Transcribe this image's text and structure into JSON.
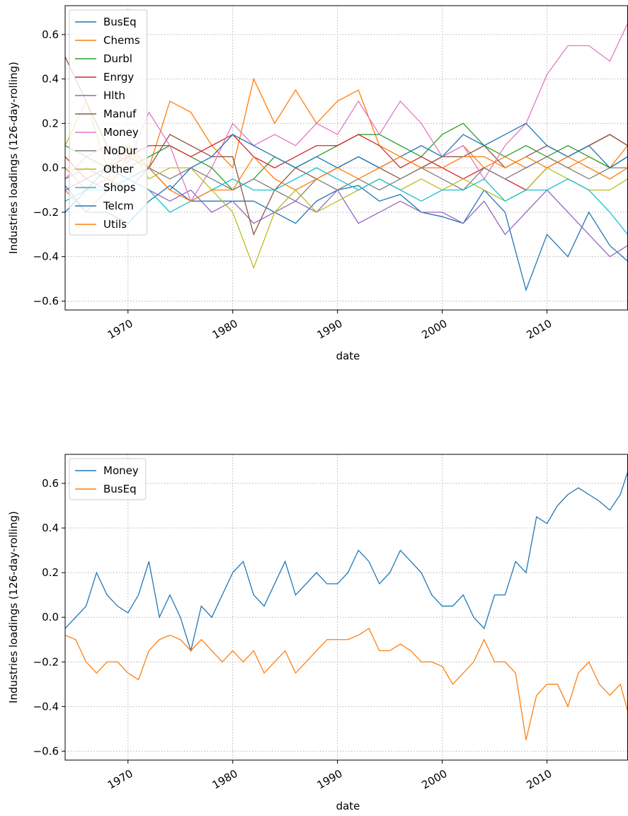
{
  "chart_data": [
    {
      "type": "line",
      "xlabel": "date",
      "ylabel": "Industries loadings (126-day-rolling)",
      "x": [
        1964,
        1966,
        1968,
        1970,
        1972,
        1974,
        1976,
        1978,
        1980,
        1982,
        1984,
        1986,
        1988,
        1990,
        1992,
        1994,
        1996,
        1998,
        2000,
        2002,
        2004,
        2006,
        2008,
        2010,
        2012,
        2014,
        2016,
        2017.7
      ],
      "xlim": [
        1964,
        2017.7
      ],
      "xticks": [
        1970,
        1980,
        1990,
        2000,
        2010
      ],
      "ylim": [
        -0.64,
        0.73
      ],
      "yticks": [
        {
          "value": -0.6,
          "label": "−0.6"
        },
        {
          "value": -0.4,
          "label": "−0.4"
        },
        {
          "value": -0.2,
          "label": "−0.2"
        },
        {
          "value": 0,
          "label": "0.0"
        },
        0.2,
        0.4,
        0.6
      ],
      "grid": true,
      "legend": "upper left",
      "series": [
        {
          "name": "BusEq",
          "color": "#1f77b4",
          "values": [
            -0.08,
            -0.2,
            -0.2,
            -0.25,
            -0.15,
            -0.08,
            -0.15,
            -0.15,
            -0.15,
            -0.15,
            -0.2,
            -0.25,
            -0.15,
            -0.1,
            -0.08,
            -0.15,
            -0.12,
            -0.2,
            -0.22,
            -0.25,
            -0.1,
            -0.2,
            -0.55,
            -0.3,
            -0.4,
            -0.2,
            -0.35,
            -0.42
          ]
        },
        {
          "name": "Chems",
          "color": "#ff7f0e",
          "values": [
            0.0,
            -0.1,
            -0.05,
            0.1,
            0.0,
            0.3,
            0.25,
            0.1,
            0.0,
            0.4,
            0.2,
            0.35,
            0.2,
            0.3,
            0.35,
            0.1,
            0.05,
            0.0,
            0.05,
            0.1,
            0.0,
            0.05,
            0.0,
            0.05,
            0.0,
            0.05,
            0.0,
            0.1
          ]
        },
        {
          "name": "Durbl",
          "color": "#2ca02c",
          "values": [
            0.1,
            0.05,
            0.0,
            0.0,
            0.05,
            0.1,
            0.05,
            0.0,
            -0.1,
            -0.05,
            0.05,
            0.0,
            0.05,
            0.1,
            0.15,
            0.15,
            0.1,
            0.05,
            0.15,
            0.2,
            0.1,
            0.05,
            0.1,
            0.05,
            0.1,
            0.05,
            0.0,
            0.05
          ]
        },
        {
          "name": "Enrgy",
          "color": "#d62728",
          "values": [
            0.05,
            -0.05,
            0.0,
            0.05,
            0.1,
            0.1,
            0.05,
            0.1,
            0.15,
            0.05,
            0.0,
            0.05,
            0.1,
            0.1,
            0.15,
            0.1,
            0.0,
            0.05,
            0.0,
            -0.05,
            0.0,
            -0.05,
            -0.1,
            0.0,
            0.05,
            0.1,
            0.15,
            0.1
          ]
        },
        {
          "name": "Hlth",
          "color": "#9467bd",
          "values": [
            -0.1,
            -0.05,
            -0.1,
            -0.05,
            -0.1,
            -0.15,
            -0.1,
            -0.2,
            -0.15,
            -0.25,
            -0.2,
            -0.15,
            -0.2,
            -0.1,
            -0.25,
            -0.2,
            -0.15,
            -0.2,
            -0.2,
            -0.25,
            -0.15,
            -0.3,
            -0.2,
            -0.1,
            -0.2,
            -0.3,
            -0.4,
            -0.35
          ]
        },
        {
          "name": "Manuf",
          "color": "#8c564b",
          "values": [
            0.5,
            0.3,
            0.1,
            0.05,
            0.0,
            0.15,
            0.1,
            0.05,
            0.05,
            -0.3,
            -0.1,
            0.0,
            -0.05,
            0.0,
            0.05,
            0.0,
            -0.05,
            0.0,
            0.05,
            0.05,
            0.1,
            0.0,
            0.05,
            0.1,
            0.05,
            0.1,
            0.15,
            0.1
          ]
        },
        {
          "name": "Money",
          "color": "#e377c2",
          "values": [
            -0.05,
            0.05,
            0.1,
            0.02,
            0.25,
            0.1,
            -0.15,
            0.0,
            0.2,
            0.1,
            0.15,
            0.1,
            0.2,
            0.15,
            0.3,
            0.15,
            0.3,
            0.2,
            0.05,
            0.1,
            -0.05,
            0.1,
            0.2,
            0.42,
            0.55,
            0.55,
            0.48,
            0.65
          ]
        },
        {
          "name": "NoDur",
          "color": "#7f7f7f",
          "values": [
            -0.05,
            0.0,
            -0.05,
            -0.1,
            0.0,
            -0.05,
            0.0,
            -0.05,
            -0.1,
            -0.05,
            -0.1,
            -0.15,
            -0.05,
            -0.1,
            -0.05,
            -0.1,
            -0.05,
            0.0,
            -0.05,
            -0.1,
            0.0,
            -0.05,
            0.0,
            0.05,
            0.0,
            -0.05,
            0.0,
            0.0
          ]
        },
        {
          "name": "Other",
          "color": "#bcbd22",
          "values": [
            0.1,
            0.3,
            0.0,
            0.1,
            -0.05,
            0.0,
            0.0,
            -0.1,
            -0.2,
            -0.45,
            -0.2,
            -0.1,
            -0.2,
            -0.15,
            -0.1,
            -0.05,
            -0.1,
            -0.05,
            -0.1,
            -0.05,
            -0.1,
            -0.15,
            -0.1,
            0.0,
            -0.05,
            -0.1,
            -0.1,
            -0.05
          ]
        },
        {
          "name": "Shops",
          "color": "#17becf",
          "values": [
            -0.15,
            -0.1,
            -0.1,
            -0.05,
            -0.1,
            -0.2,
            -0.15,
            -0.1,
            -0.05,
            -0.1,
            -0.1,
            -0.05,
            0.0,
            -0.05,
            -0.1,
            -0.05,
            -0.1,
            -0.15,
            -0.1,
            -0.1,
            -0.05,
            -0.15,
            -0.1,
            -0.1,
            -0.05,
            -0.1,
            -0.2,
            -0.3
          ]
        },
        {
          "name": "Telcm",
          "color": "#1f77b4",
          "values": [
            -0.2,
            -0.1,
            0.0,
            -0.05,
            0.0,
            -0.1,
            0.0,
            0.05,
            0.15,
            0.1,
            0.05,
            0.0,
            0.05,
            0.0,
            0.05,
            0.0,
            0.05,
            0.1,
            0.05,
            0.15,
            0.1,
            0.15,
            0.2,
            0.1,
            0.05,
            0.1,
            0.0,
            0.05
          ]
        },
        {
          "name": "Utils",
          "color": "#ff7f0e",
          "values": [
            -0.1,
            -0.2,
            -0.1,
            0.05,
            0.0,
            -0.1,
            -0.15,
            -0.1,
            -0.1,
            0.05,
            -0.05,
            -0.1,
            -0.05,
            0.0,
            -0.05,
            0.0,
            0.05,
            0.0,
            0.0,
            0.05,
            0.05,
            0.0,
            0.05,
            0.0,
            0.05,
            0.0,
            -0.05,
            0.0
          ]
        }
      ]
    },
    {
      "type": "line",
      "xlabel": "date",
      "ylabel": "Industries loadings (126-day-rolling)",
      "x": [
        1964,
        1965,
        1966,
        1967,
        1968,
        1969,
        1970,
        1971,
        1972,
        1973,
        1974,
        1975,
        1976,
        1977,
        1978,
        1979,
        1980,
        1981,
        1982,
        1983,
        1984,
        1985,
        1986,
        1987,
        1988,
        1989,
        1990,
        1991,
        1992,
        1993,
        1994,
        1995,
        1996,
        1997,
        1998,
        1999,
        2000,
        2001,
        2002,
        2003,
        2004,
        2005,
        2006,
        2007,
        2008,
        2009,
        2010,
        2011,
        2012,
        2013,
        2014,
        2015,
        2016,
        2017,
        2017.7
      ],
      "xlim": [
        1964,
        2017.7
      ],
      "xticks": [
        1970,
        1980,
        1990,
        2000,
        2010
      ],
      "ylim": [
        -0.64,
        0.73
      ],
      "yticks": [
        {
          "value": -0.6,
          "label": "−0.6"
        },
        {
          "value": -0.4,
          "label": "−0.4"
        },
        {
          "value": -0.2,
          "label": "−0.2"
        },
        {
          "value": 0,
          "label": "0.0"
        },
        0.2,
        0.4,
        0.6
      ],
      "grid": true,
      "legend": "upper left",
      "series": [
        {
          "name": "Money",
          "color": "#1f77b4",
          "values": [
            -0.05,
            0.0,
            0.05,
            0.2,
            0.1,
            0.05,
            0.02,
            0.1,
            0.25,
            0.0,
            0.1,
            0.0,
            -0.15,
            0.05,
            0.0,
            0.1,
            0.2,
            0.25,
            0.1,
            0.05,
            0.15,
            0.25,
            0.1,
            0.15,
            0.2,
            0.15,
            0.15,
            0.2,
            0.3,
            0.25,
            0.15,
            0.2,
            0.3,
            0.25,
            0.2,
            0.1,
            0.05,
            0.05,
            0.1,
            0.0,
            -0.05,
            0.1,
            0.1,
            0.25,
            0.2,
            0.45,
            0.42,
            0.5,
            0.55,
            0.58,
            0.55,
            0.52,
            0.48,
            0.55,
            0.65
          ]
        },
        {
          "name": "BusEq",
          "color": "#ff7f0e",
          "values": [
            -0.08,
            -0.1,
            -0.2,
            -0.25,
            -0.2,
            -0.2,
            -0.25,
            -0.28,
            -0.15,
            -0.1,
            -0.08,
            -0.1,
            -0.15,
            -0.1,
            -0.15,
            -0.2,
            -0.15,
            -0.2,
            -0.15,
            -0.25,
            -0.2,
            -0.15,
            -0.25,
            -0.2,
            -0.15,
            -0.1,
            -0.1,
            -0.1,
            -0.08,
            -0.05,
            -0.15,
            -0.15,
            -0.12,
            -0.15,
            -0.2,
            -0.2,
            -0.22,
            -0.3,
            -0.25,
            -0.2,
            -0.1,
            -0.2,
            -0.2,
            -0.25,
            -0.55,
            -0.35,
            -0.3,
            -0.3,
            -0.4,
            -0.25,
            -0.2,
            -0.3,
            -0.35,
            -0.3,
            -0.42
          ]
        }
      ]
    }
  ]
}
